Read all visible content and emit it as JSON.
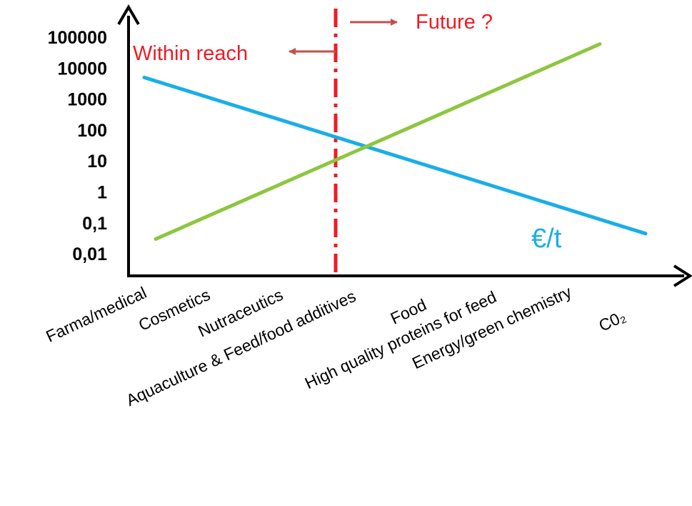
{
  "chart_data": {
    "type": "line",
    "y_scale": "log",
    "ylim": [
      0.01,
      100000
    ],
    "y_tick_labels": [
      "100000",
      "10000",
      "1000",
      "100",
      "10",
      "1",
      "0,1",
      "0,01"
    ],
    "categories": [
      "Farma/medical",
      "Cosmetics",
      "Nutraceutics",
      "Aquaculture & Feed/food additives",
      "Food",
      "High quality proteins for feed",
      "Energy/green chemistry",
      "C0₂"
    ],
    "series": [
      {
        "name": "€/t",
        "color": "#1aaee6",
        "label_color": "#1aaee6",
        "start": {
          "category": "Farma/medical",
          "y": 5000
        },
        "end": {
          "category": "C0₂",
          "y": 0.045
        }
      },
      {
        "name": "",
        "color": "#8dc63f",
        "start": {
          "category": "Farma/medical",
          "y": 0.03
        },
        "end": {
          "category": "C0₂",
          "y": 60000
        }
      }
    ],
    "divider": {
      "category": "Aquaculture & Feed/food additives",
      "style": "dash-dot",
      "color": "#ee1c24"
    },
    "annotations": [
      {
        "text": "Within reach",
        "color": "#ee1c24",
        "arrow": "left",
        "arrow_color": "#c0504d"
      },
      {
        "text": "Future ?",
        "color": "#ee1c24",
        "arrow": "right",
        "arrow_color": "#c0504d"
      }
    ],
    "grid": false,
    "legend": "none"
  }
}
